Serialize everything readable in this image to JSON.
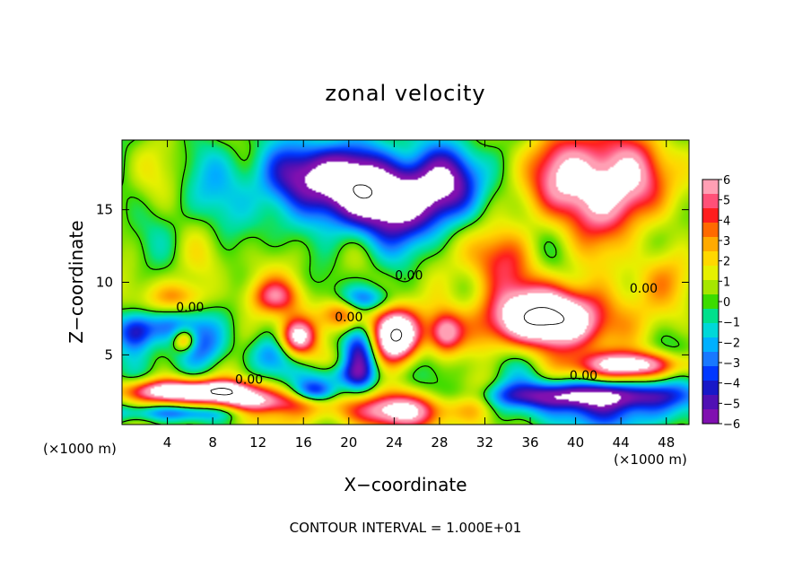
{
  "chart_data": {
    "type": "heatmap",
    "title": "zonal velocity",
    "xlabel": "X−coordinate",
    "ylabel": "Z−coordinate",
    "x_unit_left": "(×1000 m)",
    "x_unit_right": "(×1000 m)",
    "xlim": [
      0,
      50
    ],
    "ylim": [
      0.2,
      19.8
    ],
    "xticks": [
      4,
      8,
      12,
      16,
      20,
      24,
      28,
      32,
      36,
      40,
      44,
      48
    ],
    "yticks": [
      5,
      10,
      15
    ],
    "footer": "CONTOUR INTERVAL = 1.000E+01",
    "colorbar": {
      "ticks": [
        "6",
        "5",
        "4",
        "3",
        "2",
        "1",
        "0",
        "−1",
        "−2",
        "−3",
        "−4",
        "−5",
        "−6"
      ],
      "colors": [
        "#ff9fb4",
        "#ff5078",
        "#ff1e1e",
        "#ff6a00",
        "#ffaa00",
        "#ffd800",
        "#e6f000",
        "#a6e600",
        "#3cdc00",
        "#00e08c",
        "#00d8d8",
        "#00b0ff",
        "#1878ff",
        "#0038ff",
        "#1818c8",
        "#5010b4",
        "#8010b0"
      ]
    },
    "contour_labels": [
      {
        "text": "0.00",
        "x": 25.3,
        "z": 10.2
      },
      {
        "text": "0.00",
        "x": 6.0,
        "z": 8.0
      },
      {
        "text": "0.00",
        "x": 20.0,
        "z": 7.3
      },
      {
        "text": "0.00",
        "x": 11.2,
        "z": 3.0
      },
      {
        "text": "0.00",
        "x": 40.7,
        "z": 3.3
      },
      {
        "text": "0.00",
        "x": 46.0,
        "z": 9.3
      }
    ],
    "fields": {
      "base": 0.3,
      "noise": [
        {
          "a": 0.9,
          "fx": 0.55,
          "fz": 0.7,
          "p": 0.3
        },
        {
          "a": 0.7,
          "fx": 0.9,
          "fz": 0.45,
          "p": 1.7
        },
        {
          "a": 0.5,
          "fx": 1.3,
          "fz": 1.1,
          "p": 2.9
        }
      ],
      "blobs": [
        {
          "x": 23,
          "z": 16,
          "sx": 5.5,
          "sz": 2.8,
          "a": -10
        },
        {
          "x": 16,
          "z": 17.5,
          "sx": 4,
          "sz": 2.2,
          "a": -6
        },
        {
          "x": 29,
          "z": 17,
          "sx": 3,
          "sz": 2.5,
          "a": -4
        },
        {
          "x": 9,
          "z": 15,
          "sx": 2.5,
          "sz": 3,
          "a": -2.3
        },
        {
          "x": 42,
          "z": 17,
          "sx": 5.5,
          "sz": 3.5,
          "a": 8.5
        },
        {
          "x": 33,
          "z": 11.5,
          "sx": 3,
          "sz": 2.2,
          "a": 4
        },
        {
          "x": 47,
          "z": 10.5,
          "sx": 3.5,
          "sz": 2,
          "a": 2
        },
        {
          "x": 37.5,
          "z": 7.5,
          "sx": 6,
          "sz": 2.2,
          "a": 10
        },
        {
          "x": 45,
          "z": 4.3,
          "sx": 5,
          "sz": 0.9,
          "a": 7
        },
        {
          "x": 41,
          "z": 2.2,
          "sx": 9,
          "sz": 0.9,
          "a": -7
        },
        {
          "x": 43,
          "z": 0.9,
          "sx": 9,
          "sz": 1.2,
          "a": -3
        },
        {
          "x": 24,
          "z": 6.3,
          "sx": 2.2,
          "sz": 1.8,
          "a": 10
        },
        {
          "x": 21,
          "z": 5,
          "sx": 1.5,
          "sz": 2.5,
          "a": -6
        },
        {
          "x": 21.5,
          "z": 8.8,
          "sx": 2.5,
          "sz": 0.9,
          "a": -3.5
        },
        {
          "x": 15.5,
          "z": 6.2,
          "sx": 1.6,
          "sz": 1.3,
          "a": 7
        },
        {
          "x": 19.5,
          "z": 7.8,
          "sx": 2.2,
          "sz": 1.2,
          "a": 5
        },
        {
          "x": 13.5,
          "z": 9,
          "sx": 2.5,
          "sz": 1.2,
          "a": 3.5
        },
        {
          "x": 28.5,
          "z": 6.5,
          "sx": 1.5,
          "sz": 1.5,
          "a": 6
        },
        {
          "x": 5,
          "z": 9,
          "sx": 2.5,
          "sz": 1,
          "a": 2.5
        },
        {
          "x": 4,
          "z": 7,
          "sx": 3.5,
          "sz": 1.1,
          "a": -3
        },
        {
          "x": 1.2,
          "z": 6.5,
          "sx": 1.5,
          "sz": 1.3,
          "a": -4
        },
        {
          "x": 5.5,
          "z": 6,
          "sx": 1,
          "sz": 0.8,
          "a": 5
        },
        {
          "x": 7,
          "z": 5.5,
          "sx": 2.5,
          "sz": 1.5,
          "a": -3.5
        },
        {
          "x": 13,
          "z": 5,
          "sx": 2,
          "sz": 1.2,
          "a": -2
        },
        {
          "x": 5,
          "z": 2.5,
          "sx": 5,
          "sz": 0.8,
          "a": 8
        },
        {
          "x": 12,
          "z": 1.7,
          "sx": 5,
          "sz": 1.2,
          "a": 6.5
        },
        {
          "x": 9,
          "z": 2.6,
          "sx": 1.8,
          "sz": 0.6,
          "a": 3
        },
        {
          "x": 6,
          "z": 1,
          "sx": 7,
          "sz": 0.6,
          "a": -4
        },
        {
          "x": 17,
          "z": 2.5,
          "sx": 2,
          "sz": 0.8,
          "a": -6
        },
        {
          "x": 18.5,
          "z": 3.6,
          "sx": 3,
          "sz": 0.8,
          "a": -2.5
        },
        {
          "x": 24,
          "z": 1.2,
          "sx": 5,
          "sz": 1.3,
          "a": 7
        },
        {
          "x": 31.5,
          "z": 1.4,
          "sx": 2,
          "sz": 2.5,
          "a": 3
        },
        {
          "x": 32,
          "z": 4,
          "sx": 3,
          "sz": 2,
          "a": -2
        },
        {
          "x": 10,
          "z": 11,
          "sx": 6,
          "sz": 3,
          "a": 1
        }
      ]
    }
  }
}
